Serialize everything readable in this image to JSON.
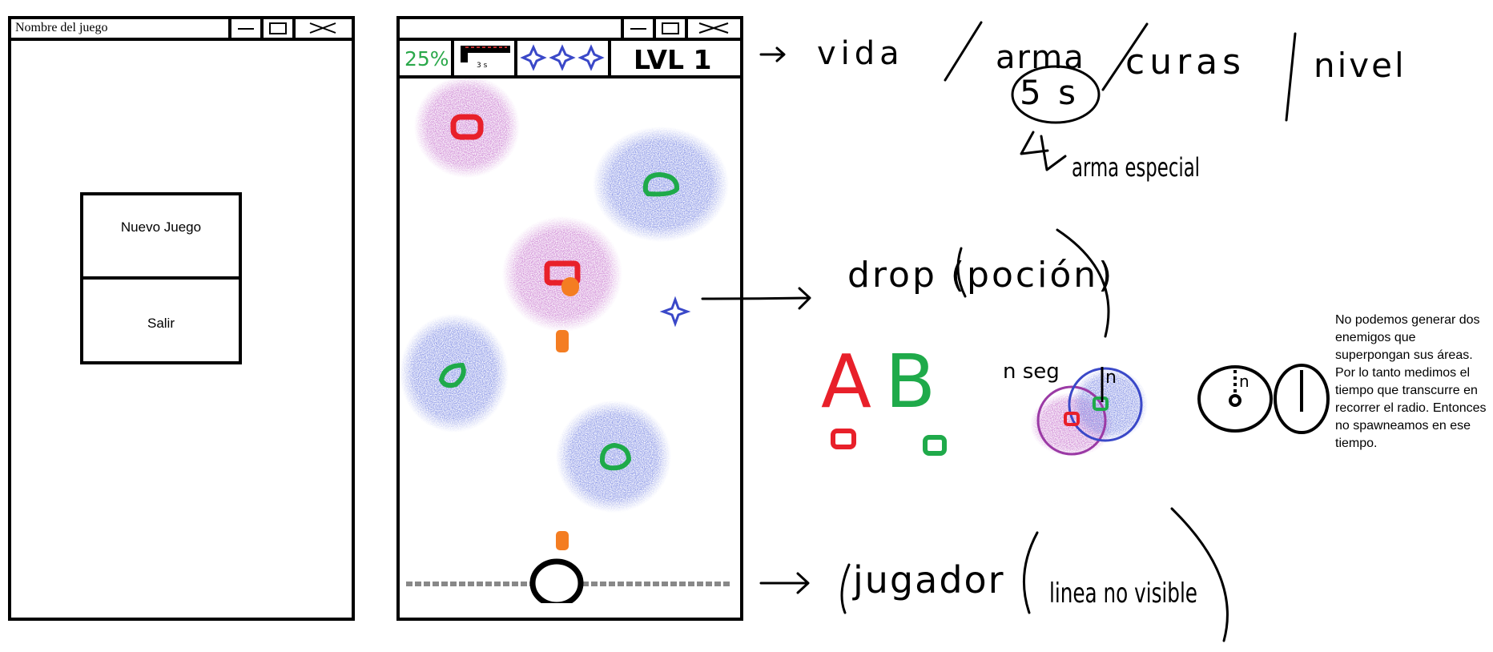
{
  "menu_window": {
    "title": "Nombre del juego",
    "buttons": [
      {
        "label": "Nuevo Juego"
      },
      {
        "label": "Salir"
      }
    ]
  },
  "game_window": {
    "hud": {
      "life": "25%",
      "weapon_timer": "3 s",
      "heals_count": 3,
      "level": "LVL 1"
    },
    "enemies": [
      {
        "type": "A",
        "halo": "purple"
      },
      {
        "type": "B",
        "halo": "blue"
      },
      {
        "type": "A",
        "halo": "purple"
      },
      {
        "type": "B",
        "halo": "blue"
      },
      {
        "type": "B",
        "halo": "blue"
      }
    ]
  },
  "annotations": {
    "hud_legend": [
      "vida",
      "arma",
      "curas",
      "nivel"
    ],
    "weapon_time": "5 s",
    "special_weapon": "arma especial",
    "drop": "drop (poción)",
    "enemy_types": [
      "A",
      "B"
    ],
    "spawn_time_label": "n seg",
    "spawn_radius_label": "n",
    "player": "jugador",
    "player_line": "linea no visible",
    "spawn_note": "No podemos generar dos enemigos que superpongan sus áreas. Por lo tanto medimos el tiempo que transcurre en recorrer el radio. Entonces no spawneamos en ese tiempo."
  },
  "colors": {
    "enemy_a": "#e8202a",
    "enemy_b": "#1faa4a",
    "purple_halo": "#9b3aa5",
    "blue_halo": "#3a48c8",
    "projectile": "#f47d22",
    "heal": "#3a48c8",
    "life_text": "#2aa84a"
  }
}
